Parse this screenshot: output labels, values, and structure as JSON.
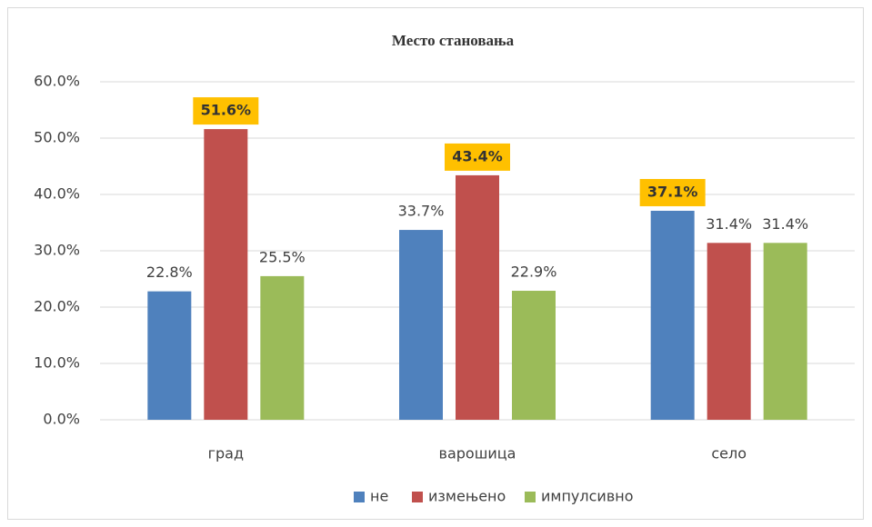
{
  "chart_data": {
    "type": "bar",
    "title": "Место становања",
    "categories": [
      "град",
      "варошица",
      "село"
    ],
    "series": [
      {
        "name": "не",
        "color": "#4f81bd",
        "values": [
          22.8,
          33.7,
          37.1
        ],
        "value_labels": [
          "22.8%",
          "33.7%",
          "37.1%"
        ]
      },
      {
        "name": "измењено",
        "color": "#c0504d",
        "values": [
          51.6,
          43.4,
          31.4
        ],
        "value_labels": [
          "51.6%",
          "43.4%",
          "31.4%"
        ]
      },
      {
        "name": "импулсивно",
        "color": "#9bbb59",
        "values": [
          25.5,
          22.9,
          31.4
        ],
        "value_labels": [
          "25.5%",
          "22.9%",
          "31.4%"
        ]
      }
    ],
    "ylim": [
      0,
      60
    ],
    "yticks": [
      {
        "value": 0,
        "label": "0.0%"
      },
      {
        "value": 10,
        "label": "10.0%"
      },
      {
        "value": 20,
        "label": "20.0%"
      },
      {
        "value": 30,
        "label": "30.0%"
      },
      {
        "value": 40,
        "label": "40.0%"
      },
      {
        "value": 50,
        "label": "50.0%"
      },
      {
        "value": 60,
        "label": "60.0%"
      }
    ],
    "grid": true,
    "legend": "bottom"
  }
}
